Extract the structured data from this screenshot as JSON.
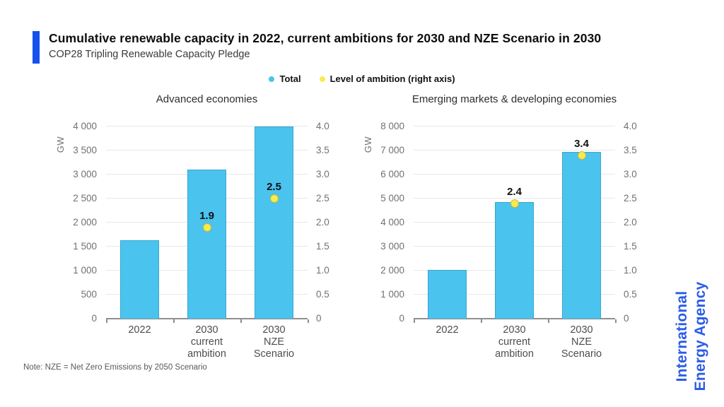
{
  "header": {
    "title": "Cumulative renewable capacity in 2022, current ambitions for 2030 and NZE Scenario in 2030",
    "subtitle": "COP28 Tripling Renewable Capacity Pledge"
  },
  "legend": {
    "items": [
      {
        "label": "Total",
        "marker": "circle",
        "color": "#4ac3ee"
      },
      {
        "label": "Level of ambition (right axis)",
        "marker": "circle",
        "color": "#f7ec4d"
      }
    ]
  },
  "note": "Note: NZE = Net Zero Emissions by 2050 Scenario",
  "brand": {
    "line1": "International",
    "line2": "Energy Agency",
    "color": "#2b5ce8"
  },
  "style": {
    "accent_blue": "#1551ee",
    "brand_blue": "#2b5ce8",
    "bar_fill": "#4ac3ee",
    "bar_border": "#38a7d0",
    "dot_fill": "#f7ec4d",
    "dot_border": "#c9b93a",
    "grid": "#e8e8e8",
    "axis": "#8f8f8f",
    "tick_text": "#717171",
    "category_text": "#4d4d4d",
    "title_text": "#0d0d0d",
    "subtitle_text": "#3a3a3a",
    "chart_title_text": "#2e2e2e",
    "note_text": "#595959",
    "label_text": "#111111"
  },
  "chart_data": [
    {
      "type": "bar",
      "title": "Advanced economies",
      "unit": "GW",
      "grid": true,
      "categories": [
        [
          "2022"
        ],
        [
          "2030",
          "current",
          "ambition"
        ],
        [
          "2030",
          "NZE Scenario"
        ]
      ],
      "series": [
        {
          "name": "Total",
          "axis": "left",
          "values": [
            1630,
            3100,
            4000
          ]
        },
        {
          "name": "Level of ambition (right axis)",
          "axis": "right",
          "values": [
            null,
            1.9,
            2.5
          ],
          "labels": [
            null,
            "1.9",
            "2.5"
          ]
        }
      ],
      "left_axis": {
        "min": 0,
        "max": 4000,
        "step": 500,
        "tick_labels": [
          "0",
          "500",
          "1 000",
          "1 500",
          "2 000",
          "2 500",
          "3 000",
          "3 500",
          "4 000"
        ]
      },
      "right_axis": {
        "min": 0,
        "max": 4.0,
        "step": 0.5,
        "tick_labels": [
          "0",
          "0.5",
          "1.0",
          "1.5",
          "2.0",
          "2.5",
          "3.0",
          "3.5",
          "4.0"
        ]
      }
    },
    {
      "type": "bar",
      "title": "Emerging markets & developing economies",
      "unit": "GW",
      "grid": true,
      "categories": [
        [
          "2022"
        ],
        [
          "2030",
          "current",
          "ambition"
        ],
        [
          "2030",
          "NZE Scenario"
        ]
      ],
      "series": [
        {
          "name": "Total",
          "axis": "left",
          "values": [
            2030,
            4850,
            6950
          ]
        },
        {
          "name": "Level of ambition (right axis)",
          "axis": "right",
          "values": [
            null,
            2.4,
            3.4
          ],
          "labels": [
            null,
            "2.4",
            "3.4"
          ]
        }
      ],
      "left_axis": {
        "min": 0,
        "max": 8000,
        "step": 1000,
        "tick_labels": [
          "0",
          "1 000",
          "2 000",
          "3 000",
          "4 000",
          "5 000",
          "6 000",
          "7 000",
          "8 000"
        ]
      },
      "right_axis": {
        "min": 0,
        "max": 4.0,
        "step": 0.5,
        "tick_labels": [
          "0",
          "0.5",
          "1.0",
          "1.5",
          "2.0",
          "2.5",
          "3.0",
          "3.5",
          "4.0"
        ]
      }
    }
  ]
}
